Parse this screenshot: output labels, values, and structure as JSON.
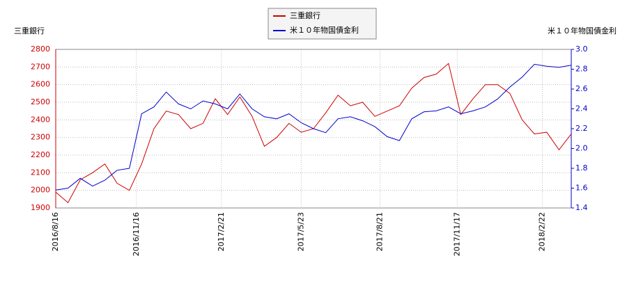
{
  "chart_data": {
    "type": "line",
    "ylabel": "三重銀行",
    "y2label": "米１０年物国債金利",
    "x": [
      "2016/8/16",
      "2016/8/30",
      "2016/9/13",
      "2016/9/27",
      "2016/10/11",
      "2016/10/25",
      "2016/11/8",
      "2016/11/22",
      "2016/12/6",
      "2016/12/20",
      "2017/1/3",
      "2017/1/17",
      "2017/1/31",
      "2017/2/14",
      "2017/2/28",
      "2017/3/14",
      "2017/3/28",
      "2017/4/11",
      "2017/4/25",
      "2017/5/9",
      "2017/5/23",
      "2017/6/6",
      "2017/6/20",
      "2017/7/4",
      "2017/7/18",
      "2017/8/1",
      "2017/8/15",
      "2017/8/29",
      "2017/9/12",
      "2017/9/26",
      "2017/10/10",
      "2017/10/24",
      "2017/11/7",
      "2017/11/21",
      "2017/12/5",
      "2017/12/19",
      "2018/1/2",
      "2018/1/16",
      "2018/1/30",
      "2018/2/13",
      "2018/2/27",
      "2018/3/13",
      "2018/3/27"
    ],
    "series": [
      {
        "name": "三重銀行",
        "color": "#cc0000",
        "axis": "y",
        "values": [
          1990,
          1930,
          2060,
          2100,
          2150,
          2040,
          2000,
          2150,
          2350,
          2450,
          2430,
          2350,
          2380,
          2520,
          2430,
          2530,
          2420,
          2250,
          2300,
          2380,
          2330,
          2350,
          2440,
          2540,
          2480,
          2500,
          2420,
          2450,
          2480,
          2580,
          2640,
          2660,
          2720,
          2430,
          2520,
          2600,
          2600,
          2550,
          2400,
          2320,
          2330,
          2230,
          2320
        ]
      },
      {
        "name": "米１０年物国債金利",
        "color": "#0000cc",
        "axis": "y2",
        "values": [
          1.58,
          1.6,
          1.7,
          1.62,
          1.68,
          1.78,
          1.8,
          2.35,
          2.42,
          2.57,
          2.45,
          2.4,
          2.48,
          2.45,
          2.4,
          2.55,
          2.4,
          2.32,
          2.3,
          2.35,
          2.26,
          2.2,
          2.16,
          2.3,
          2.32,
          2.28,
          2.22,
          2.12,
          2.08,
          2.3,
          2.37,
          2.38,
          2.42,
          2.35,
          2.38,
          2.42,
          2.5,
          2.62,
          2.72,
          2.85,
          2.83,
          2.82,
          2.84
        ]
      }
    ],
    "xlim": [
      "2016/8/16",
      "2018/3/27"
    ],
    "xticks": [
      "2016/8/16",
      "2016/11/16",
      "2017/2/21",
      "2017/5/23",
      "2017/8/21",
      "2017/11/17",
      "2018/2/22"
    ],
    "ylim": [
      1900,
      2800
    ],
    "yticks": [
      1900,
      2000,
      2100,
      2200,
      2300,
      2400,
      2500,
      2600,
      2700,
      2800
    ],
    "y2lim": [
      1.4,
      3.0
    ],
    "y2ticks": [
      {
        "value": 1.4,
        "label": "1.4"
      },
      {
        "value": 1.6,
        "label": "1.6"
      },
      {
        "value": 1.8,
        "label": "1.8"
      },
      {
        "value": 2.0,
        "label": "2.0"
      },
      {
        "value": 2.2,
        "label": "2.2"
      },
      {
        "value": 2.4,
        "label": "2.4"
      },
      {
        "value": 2.6,
        "label": "2.6"
      },
      {
        "value": 2.8,
        "label": "2.8"
      },
      {
        "value": 3.0,
        "label": "3.0"
      }
    ],
    "grid": true
  }
}
